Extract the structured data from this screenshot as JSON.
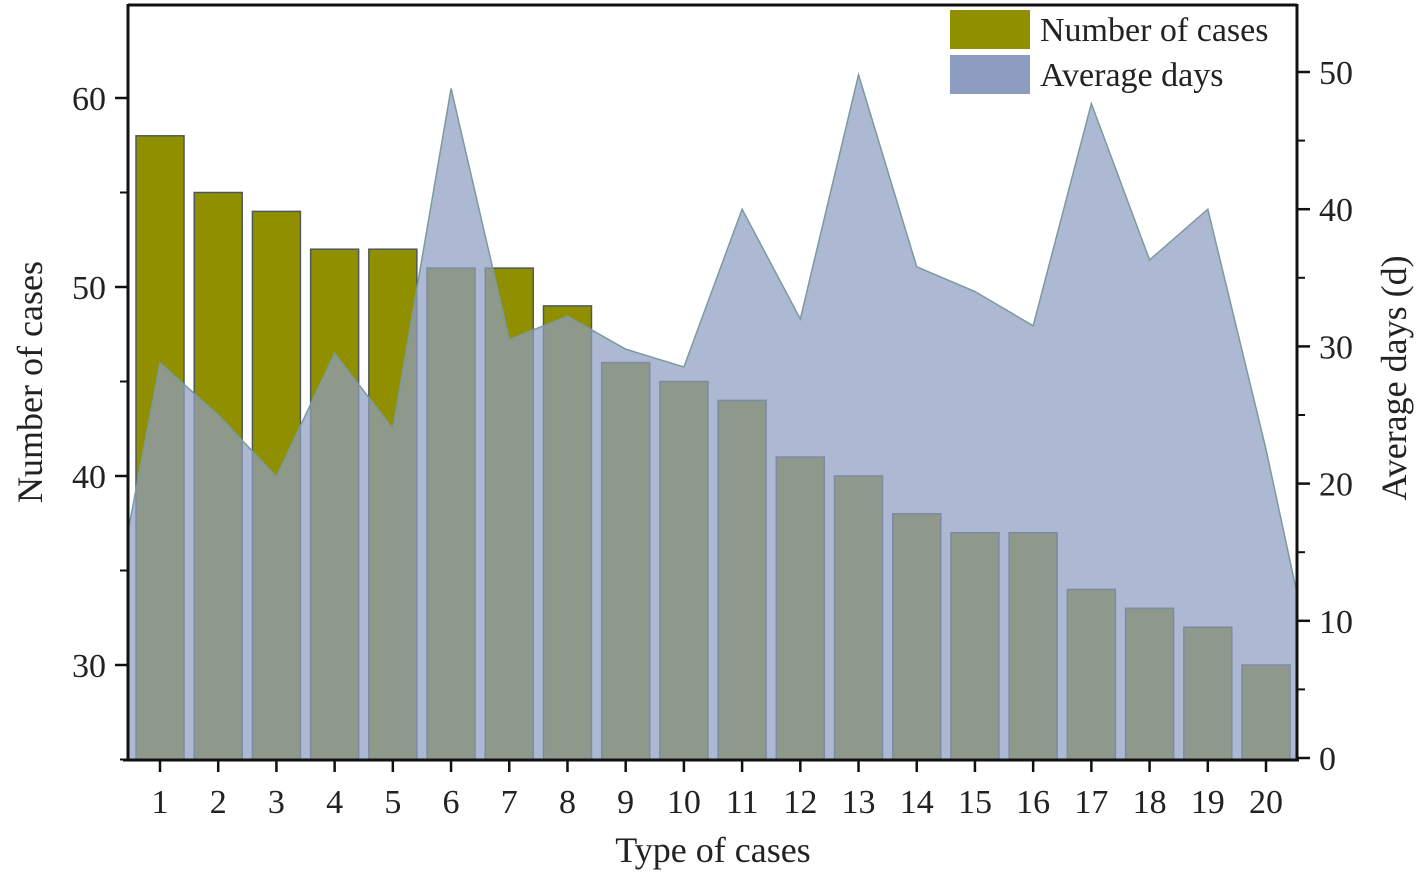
{
  "chart_data": {
    "type": "bar",
    "combo": "bar + area (dual y-axis)",
    "title": "",
    "xlabel": "Type of cases",
    "ylabel": "Number of cases",
    "ylabel_right": "Average days (d)",
    "categories": [
      "1",
      "2",
      "3",
      "4",
      "5",
      "6",
      "7",
      "8",
      "9",
      "10",
      "11",
      "12",
      "13",
      "14",
      "15",
      "16",
      "17",
      "18",
      "19",
      "20"
    ],
    "series": [
      {
        "name": "Number of cases",
        "type": "bar",
        "axis": "left",
        "color": "#8f8f00",
        "values": [
          58,
          55,
          54,
          52,
          52,
          51,
          51,
          49,
          46,
          45,
          44,
          41,
          40,
          38,
          37,
          37,
          34,
          33,
          32,
          30
        ]
      },
      {
        "name": "Average days",
        "type": "area",
        "axis": "right",
        "color": "#8d9dc2",
        "values": [
          28.8,
          25.0,
          20.5,
          29.5,
          24.0,
          48.8,
          30.5,
          32.2,
          29.8,
          28.5,
          40.0,
          32.0,
          49.8,
          35.8,
          34.0,
          31.5,
          47.7,
          36.3,
          40.0,
          22.5
        ],
        "left_edge_value": 16.5,
        "right_edge_value": 12.0
      }
    ],
    "ylim": [
      25,
      65
    ],
    "ylim_right": [
      0,
      55
    ],
    "yticks": [
      30,
      40,
      50,
      60
    ],
    "yticks_right": [
      0,
      10,
      20,
      30,
      40,
      50
    ],
    "grid": false,
    "legend_position": "upper right"
  },
  "legend": {
    "items": [
      {
        "label": "Number of cases",
        "color": "#8f8f00"
      },
      {
        "label": "Average days",
        "color": "#8d9dc2"
      }
    ]
  },
  "axes": {
    "x_title": "Type of cases",
    "y_left_title": "Number of cases",
    "y_right_title": "Average days (d)"
  }
}
